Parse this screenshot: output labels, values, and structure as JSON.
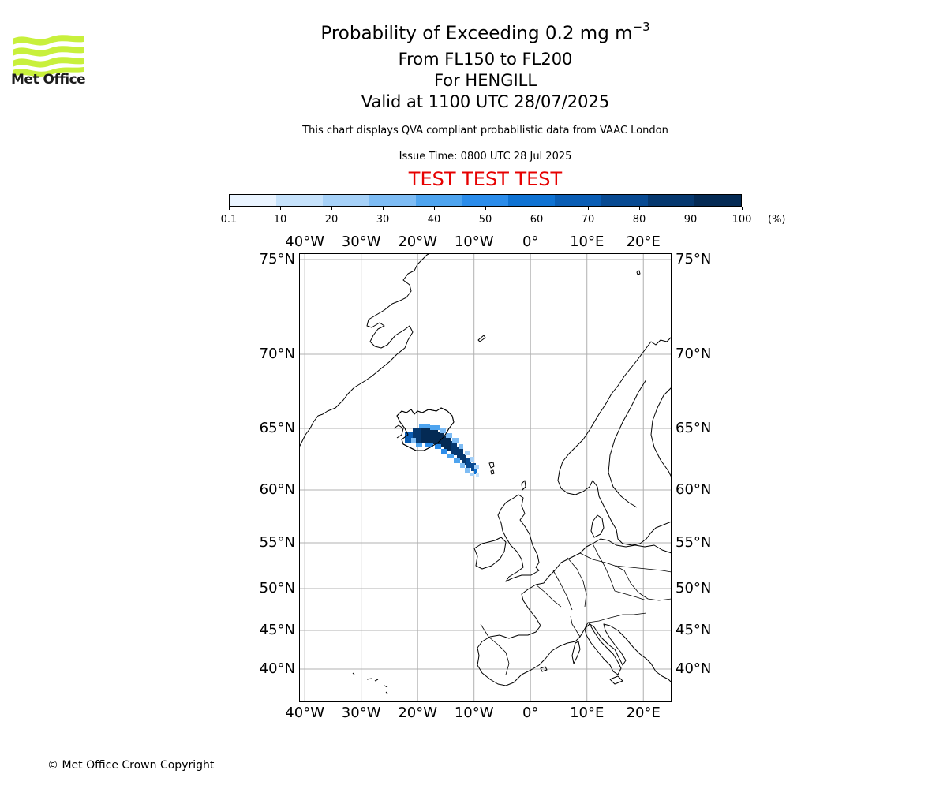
{
  "header": {
    "title_main": "Probability of Exceeding 0.2 mg m",
    "title_sup": "−3",
    "title_level": "From FL150 to FL200",
    "title_volcano": "For HENGILL",
    "title_valid": "Valid at 1100 UTC 28/07/2025",
    "note": "This chart displays QVA compliant probabilistic data from VAAC London",
    "issue_time": "Issue Time: 0800 UTC 28 Jul 2025",
    "test_banner": "TEST TEST TEST",
    "test_color": "#e60000"
  },
  "logo": {
    "text": "Met Office",
    "icon": "met-office-wave-icon",
    "color": "#c8f03c"
  },
  "colorbar": {
    "ticks": [
      "0.1",
      "10",
      "20",
      "30",
      "40",
      "50",
      "60",
      "70",
      "80",
      "90",
      "100"
    ],
    "unit": "(%)",
    "colors": [
      "#eaf4ff",
      "#c6e2fb",
      "#a6d1f8",
      "#7ebcf4",
      "#4ea4ef",
      "#2b8cea",
      "#0f72d2",
      "#0a5db4",
      "#084a92",
      "#06386f",
      "#042a54"
    ]
  },
  "map": {
    "projection": "plate-carree",
    "lon_range": [
      -41,
      25
    ],
    "lat_range": [
      37,
      76
    ],
    "lon_labels": [
      "40°W",
      "30°W",
      "20°W",
      "10°W",
      "0°",
      "10°E",
      "20°E"
    ],
    "lat_labels": [
      "75°N",
      "70°N",
      "65°N",
      "60°N",
      "55°N",
      "50°N",
      "45°N",
      "40°N"
    ],
    "gridlines": true,
    "volcano": "HENGILL",
    "plume_direction": "south-east from south-west Iceland towards 62°N 11°W"
  },
  "footer": {
    "copyright": "© Met Office Crown Copyright"
  }
}
